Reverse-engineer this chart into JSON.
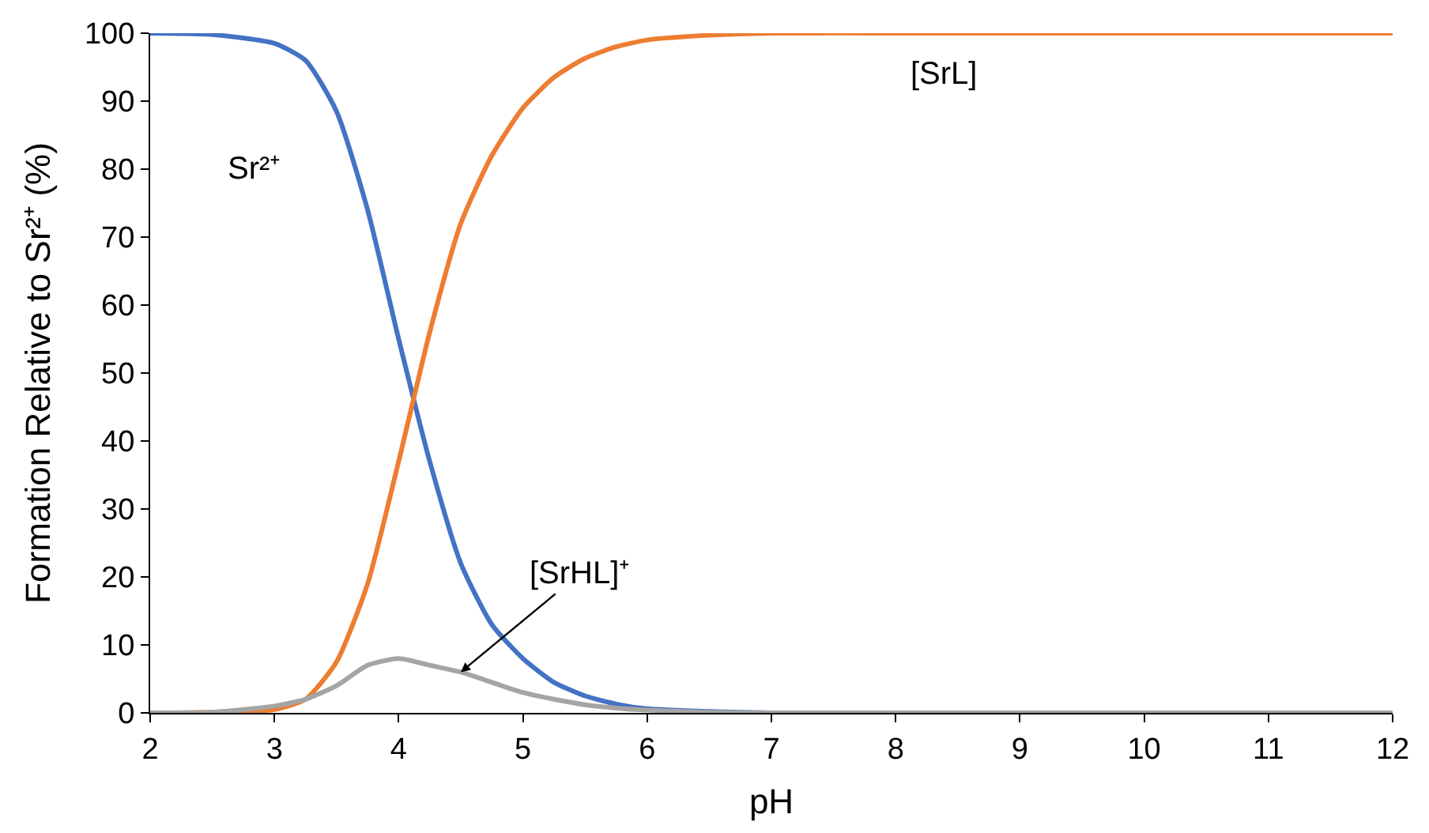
{
  "chart_data": {
    "type": "line",
    "xlabel": "pH",
    "ylabel": "Formation Relative to Sr²⁺ (%)",
    "x": [
      2,
      2.5,
      3,
      3.25,
      3.5,
      3.75,
      4,
      4.25,
      4.5,
      4.75,
      5,
      5.25,
      5.5,
      5.75,
      6,
      6.5,
      7,
      8,
      9,
      10,
      11,
      12
    ],
    "series": [
      {
        "color": "#4472c4",
        "values": [
          100,
          99.8,
          98.5,
          96,
          88.5,
          74,
          55,
          37,
          22,
          13,
          8,
          4.5,
          2.5,
          1.3,
          0.6,
          0.2,
          0,
          0,
          null,
          null,
          null,
          null
        ]
      },
      {
        "color": "#ed7d31",
        "values": [
          0,
          0.1,
          0.5,
          2,
          7.5,
          19,
          37,
          56,
          72,
          82,
          89,
          93.5,
          96.3,
          98,
          99,
          99.7,
          100,
          100,
          100,
          100,
          100,
          100
        ]
      },
      {
        "color": "#a5a5a5",
        "values": [
          0,
          0.1,
          1,
          2,
          4,
          7,
          8,
          7,
          6,
          4.5,
          3,
          2,
          1.2,
          0.7,
          0.4,
          0.1,
          0,
          0,
          0,
          0,
          0,
          0
        ]
      }
    ],
    "xlim": [
      2,
      12
    ],
    "xticks": [
      2,
      3,
      4,
      5,
      6,
      7,
      8,
      9,
      10,
      11,
      12
    ],
    "ylim": [
      0,
      100
    ],
    "yticks": [
      0,
      10,
      20,
      30,
      40,
      50,
      60,
      70,
      80,
      90,
      100
    ],
    "marker": "none",
    "line_style": "solid",
    "annotations": [
      "Sr²⁺",
      "[SrL]",
      {
        "text": "[SrHL]⁺",
        "x": 4.5,
        "y": 6
      }
    ]
  }
}
